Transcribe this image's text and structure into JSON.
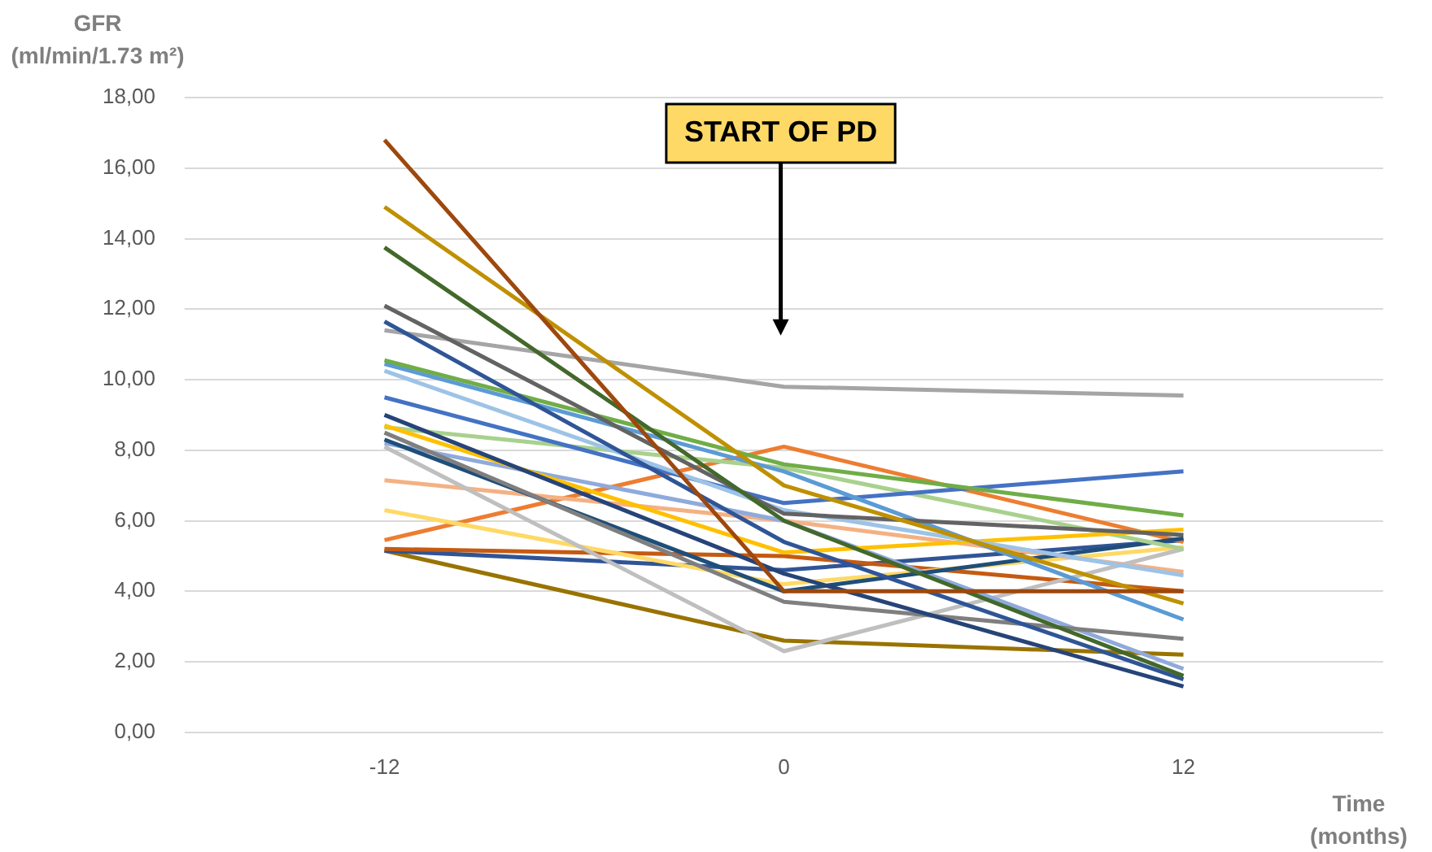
{
  "chart_data": {
    "type": "line",
    "ylabel": "GFR\n(ml/min/1.73 m²)",
    "xlabel": "Time\n(months)",
    "categories": [
      "-12",
      "0",
      "12"
    ],
    "ylim": [
      0,
      18
    ],
    "yticks": [
      {
        "value": 0,
        "label": "0,00"
      },
      {
        "value": 2,
        "label": "2,00"
      },
      {
        "value": 4,
        "label": "4,00"
      },
      {
        "value": 6,
        "label": "6,00"
      },
      {
        "value": 8,
        "label": "8,00"
      },
      {
        "value": 10,
        "label": "10,00"
      },
      {
        "value": 12,
        "label": "12,00"
      },
      {
        "value": 14,
        "label": "14,00"
      },
      {
        "value": 16,
        "label": "16,00"
      },
      {
        "value": 18,
        "label": "18,00"
      }
    ],
    "grid": "y",
    "legend": false,
    "marker": "none",
    "annotations": [
      "START OF PD"
    ],
    "series": [
      {
        "color": "#9e480e",
        "values": [
          16.8,
          4.0,
          4.0
        ]
      },
      {
        "color": "#bf9000",
        "values": [
          14.9,
          7.0,
          3.65
        ]
      },
      {
        "color": "#43682b",
        "values": [
          13.75,
          6.0,
          1.6
        ]
      },
      {
        "color": "#636363",
        "values": [
          12.1,
          6.2,
          5.6
        ]
      },
      {
        "color": "#2f5597",
        "values": [
          11.65,
          5.4,
          1.5
        ]
      },
      {
        "color": "#a5a5a5",
        "values": [
          11.4,
          9.8,
          9.55
        ]
      },
      {
        "color": "#70ad47",
        "values": [
          10.55,
          7.6,
          6.15
        ]
      },
      {
        "color": "#5b9bd5",
        "values": [
          10.45,
          7.4,
          3.2
        ]
      },
      {
        "color": "#9dc3e6",
        "values": [
          10.25,
          6.3,
          4.45
        ]
      },
      {
        "color": "#4472c4",
        "values": [
          9.5,
          6.5,
          7.4
        ]
      },
      {
        "color": "#264478",
        "values": [
          9.0,
          4.5,
          1.3
        ]
      },
      {
        "color": "#ffc000",
        "values": [
          8.7,
          5.1,
          5.75
        ]
      },
      {
        "color": "#a9d18e",
        "values": [
          8.65,
          7.5,
          5.2
        ]
      },
      {
        "color": "#7f7f7f",
        "values": [
          8.5,
          3.7,
          2.65
        ]
      },
      {
        "color": "#1f4e79",
        "values": [
          8.3,
          4.0,
          5.5
        ]
      },
      {
        "color": "#8faadc",
        "values": [
          8.2,
          6.0,
          1.8
        ]
      },
      {
        "color": "#bfbfbf",
        "values": [
          8.1,
          2.3,
          5.2
        ]
      },
      {
        "color": "#f4b183",
        "values": [
          7.15,
          6.0,
          4.55
        ]
      },
      {
        "color": "#ffd966",
        "values": [
          6.3,
          4.2,
          5.25
        ]
      },
      {
        "color": "#ed7d31",
        "values": [
          5.45,
          8.1,
          5.4
        ]
      },
      {
        "color": "#c55a11",
        "values": [
          5.2,
          5.0,
          4.0
        ]
      },
      {
        "color": "#305496",
        "values": [
          5.15,
          4.6,
          5.45
        ]
      },
      {
        "color": "#997300",
        "values": [
          5.15,
          2.6,
          2.2
        ]
      }
    ]
  }
}
